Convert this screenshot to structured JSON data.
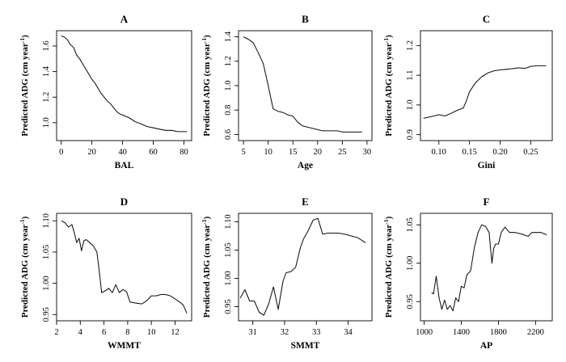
{
  "chart_data": [
    {
      "type": "line",
      "title": "A",
      "xlabel": "BAL",
      "ylabel": "Predicted ADG (cm year",
      "ylabel_sup": "-1",
      "ylabel_close": ")",
      "xlim": [
        -3,
        85
      ],
      "ylim": [
        0.86,
        1.72
      ],
      "xticks": [
        0,
        20,
        40,
        60,
        80
      ],
      "yticks": [
        1.0,
        1.2,
        1.4,
        1.6
      ],
      "ytick_labels": [
        "1.0",
        "1.2",
        "1.4",
        "1.6"
      ],
      "series": [
        {
          "x": [
            0,
            2,
            4,
            6,
            8,
            10,
            12,
            14,
            16,
            18,
            20,
            22,
            24,
            26,
            28,
            30,
            32,
            34,
            36,
            38,
            40,
            44,
            48,
            52,
            56,
            60,
            64,
            68,
            72,
            76,
            80,
            82
          ],
          "y": [
            1.68,
            1.67,
            1.65,
            1.61,
            1.59,
            1.53,
            1.5,
            1.46,
            1.42,
            1.38,
            1.34,
            1.31,
            1.27,
            1.23,
            1.2,
            1.17,
            1.15,
            1.12,
            1.09,
            1.07,
            1.06,
            1.04,
            1.01,
            0.99,
            0.97,
            0.96,
            0.95,
            0.94,
            0.94,
            0.93,
            0.93,
            0.93
          ]
        }
      ]
    },
    {
      "type": "line",
      "title": "B",
      "xlabel": "Age",
      "ylabel": "Predicted ADG (cm year",
      "ylabel_sup": "-1",
      "ylabel_close": ")",
      "xlim": [
        4,
        31
      ],
      "ylim": [
        0.55,
        1.45
      ],
      "xticks": [
        5,
        10,
        15,
        20,
        25,
        30
      ],
      "yticks": [
        0.6,
        0.8,
        1.0,
        1.2,
        1.4
      ],
      "ytick_labels": [
        "0.6",
        "0.8",
        "1.0",
        "1.2",
        "1.4"
      ],
      "series": [
        {
          "x": [
            5,
            6,
            7,
            8,
            9,
            10,
            11,
            12,
            13,
            14,
            15,
            16,
            17,
            18,
            19,
            20,
            21,
            22,
            23,
            24,
            25,
            26,
            27,
            28,
            29
          ],
          "y": [
            1.4,
            1.38,
            1.35,
            1.27,
            1.18,
            1.0,
            0.81,
            0.79,
            0.78,
            0.76,
            0.75,
            0.7,
            0.67,
            0.66,
            0.65,
            0.64,
            0.63,
            0.63,
            0.63,
            0.63,
            0.62,
            0.62,
            0.62,
            0.62,
            0.62
          ]
        }
      ]
    },
    {
      "type": "line",
      "title": "C",
      "xlabel": "Gini",
      "ylabel": "Predicted ADG (cm year",
      "ylabel_sup": "-1",
      "ylabel_close": ")",
      "xlim": [
        0.07,
        0.285
      ],
      "ylim": [
        0.88,
        1.25
      ],
      "xticks": [
        0.1,
        0.15,
        0.2,
        0.25
      ],
      "xtick_labels": [
        "0.10",
        "0.15",
        "0.20",
        "0.25"
      ],
      "yticks": [
        0.9,
        1.0,
        1.1,
        1.2
      ],
      "ytick_labels": [
        "0.9",
        "1.0",
        "1.1",
        "1.2"
      ],
      "series": [
        {
          "x": [
            0.075,
            0.09,
            0.1,
            0.11,
            0.12,
            0.13,
            0.14,
            0.145,
            0.15,
            0.16,
            0.17,
            0.18,
            0.19,
            0.2,
            0.21,
            0.22,
            0.23,
            0.24,
            0.25,
            0.26,
            0.275
          ],
          "y": [
            0.955,
            0.962,
            0.967,
            0.963,
            0.972,
            0.982,
            0.99,
            1.015,
            1.045,
            1.075,
            1.095,
            1.108,
            1.115,
            1.118,
            1.12,
            1.122,
            1.125,
            1.123,
            1.13,
            1.132,
            1.132
          ]
        }
      ]
    },
    {
      "type": "line",
      "title": "D",
      "xlabel": "WMMT",
      "ylabel": "Predicted ADG (cm year",
      "ylabel_sup": "-1",
      "ylabel_close": ")",
      "xlim": [
        2,
        13.4
      ],
      "ylim": [
        0.94,
        1.112
      ],
      "xticks": [
        2,
        4,
        6,
        8,
        10,
        12
      ],
      "yticks": [
        0.95,
        1.0,
        1.05,
        1.1
      ],
      "ytick_labels": [
        "0.95",
        "1.00",
        "1.05",
        "1.10"
      ],
      "series": [
        {
          "x": [
            2.4,
            2.7,
            3.0,
            3.3,
            3.5,
            3.7,
            3.9,
            4.1,
            4.3,
            4.5,
            4.8,
            5.1,
            5.4,
            5.6,
            5.8,
            6.1,
            6.4,
            6.7,
            7.0,
            7.3,
            7.6,
            7.9,
            8.2,
            8.5,
            8.8,
            9.2,
            9.6,
            10.0,
            10.4,
            10.8,
            11.2,
            11.6,
            12.0,
            12.4,
            12.7,
            13.0
          ],
          "y": [
            1.1,
            1.097,
            1.09,
            1.094,
            1.08,
            1.065,
            1.072,
            1.052,
            1.068,
            1.07,
            1.065,
            1.06,
            1.05,
            1.02,
            0.985,
            0.988,
            0.992,
            0.985,
            0.998,
            0.985,
            0.99,
            0.987,
            0.97,
            0.969,
            0.968,
            0.967,
            0.972,
            0.98,
            0.98,
            0.982,
            0.982,
            0.98,
            0.975,
            0.97,
            0.965,
            0.952
          ]
        }
      ]
    },
    {
      "type": "line",
      "title": "E",
      "xlabel": "SMMT",
      "ylabel": "Predicted ADG (cm year",
      "ylabel_sup": "-1",
      "ylabel_close": ")",
      "xlim": [
        30.55,
        34.75
      ],
      "ylim": [
        0.925,
        1.115
      ],
      "xticks": [
        31,
        32,
        33,
        34
      ],
      "yticks": [
        0.95,
        1.0,
        1.05,
        1.1
      ],
      "ytick_labels": [
        "0.95",
        "1.00",
        "1.05",
        "1.10"
      ],
      "series": [
        {
          "x": [
            30.6,
            30.75,
            30.9,
            31.05,
            31.2,
            31.35,
            31.5,
            31.65,
            31.8,
            31.95,
            32.05,
            32.2,
            32.35,
            32.5,
            32.6,
            32.75,
            32.9,
            33.05,
            33.2,
            33.35,
            33.5,
            33.7,
            33.9,
            34.1,
            34.3,
            34.55
          ],
          "y": [
            0.965,
            0.98,
            0.96,
            0.96,
            0.94,
            0.935,
            0.955,
            0.985,
            0.945,
            0.995,
            1.01,
            1.012,
            1.02,
            1.055,
            1.07,
            1.085,
            1.103,
            1.106,
            1.078,
            1.08,
            1.08,
            1.08,
            1.078,
            1.075,
            1.072,
            1.063
          ]
        }
      ]
    },
    {
      "type": "line",
      "title": "F",
      "xlabel": "AP",
      "ylabel": "Predicted ADG (cm year",
      "ylabel_sup": "-1",
      "ylabel_close": ")",
      "xlim": [
        960,
        2380
      ],
      "ylim": [
        0.925,
        1.065
      ],
      "xticks": [
        1000,
        1400,
        1800,
        2200
      ],
      "yticks": [
        0.95,
        1.0,
        1.05
      ],
      "ytick_labels": [
        "0.95",
        "1.00",
        "1.05"
      ],
      "series": [
        {
          "x": [
            1080,
            1100,
            1130,
            1160,
            1190,
            1220,
            1250,
            1280,
            1310,
            1340,
            1370,
            1400,
            1430,
            1460,
            1500,
            1540,
            1580,
            1620,
            1660,
            1700,
            1730,
            1750,
            1770,
            1800,
            1830,
            1870,
            1920,
            1980,
            2050,
            2120,
            2160,
            2200,
            2260,
            2320
          ],
          "y": [
            0.962,
            0.96,
            0.983,
            0.955,
            0.94,
            0.952,
            0.94,
            0.945,
            0.938,
            0.955,
            0.95,
            0.97,
            0.968,
            0.985,
            0.99,
            1.02,
            1.04,
            1.05,
            1.048,
            1.04,
            1.0,
            1.02,
            1.025,
            1.025,
            1.04,
            1.047,
            1.04,
            1.04,
            1.038,
            1.035,
            1.04,
            1.04,
            1.04,
            1.037
          ]
        }
      ]
    }
  ]
}
